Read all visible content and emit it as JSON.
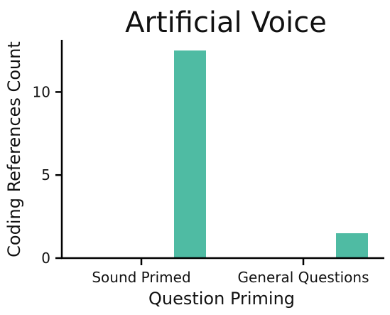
{
  "chart_data": {
    "type": "bar",
    "title": "Artificial Voice",
    "xlabel": "Question Priming",
    "ylabel": "Coding References Count",
    "categories": [
      "Sound Primed",
      "General Questions"
    ],
    "series": [
      {
        "values": [
          0,
          0
        ]
      },
      {
        "values": [
          12.5,
          1.5
        ],
        "color": "#4fbba3"
      }
    ],
    "yticks": [
      0,
      5,
      10
    ],
    "ylim": [
      0,
      13
    ],
    "grid": false,
    "legend": "none"
  }
}
